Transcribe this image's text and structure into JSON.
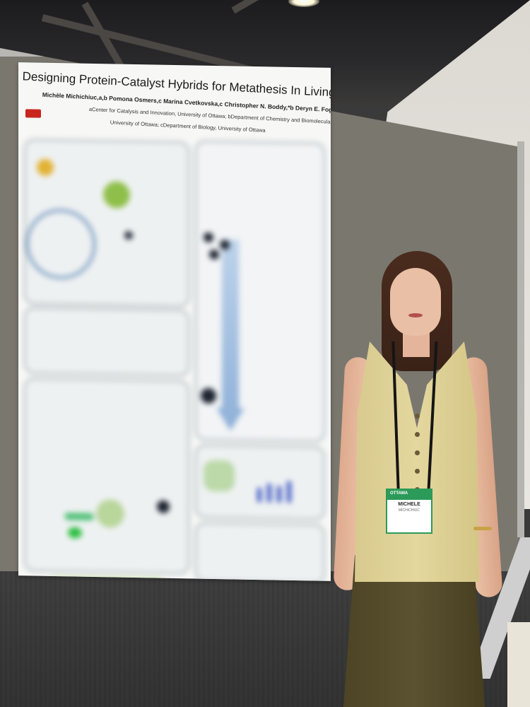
{
  "photo": {
    "subject": "conference poster presenter",
    "poster": {
      "title": "Designing Protein-Catalyst Hybrids for Metathesis In Living Cells",
      "authors": "Michèle Michichiuc,a,b Pomona Osmers,c Marina Cvetkovska,c Christopher N. Boddy,*b Deryn E. Fogg*a,b",
      "affiliation_line1": "aCenter for Catalysis and Innovation, University of Ottawa; bDepartment of Chemistry and Biomolecular Sciences,",
      "affiliation_line2": "University of Ottawa; cDepartment of Biology, University of Ottawa"
    },
    "badge": {
      "brand": "OTTAWA",
      "name": "MICHELE",
      "subtitle": "MICHICHIUC"
    },
    "colors": {
      "badge_green": "#2c9a58",
      "vest": "#e4d79e",
      "skirt": "#5a5230",
      "poster_bg": "#f7f8f6",
      "chart_blue": "#3b55c4"
    }
  }
}
